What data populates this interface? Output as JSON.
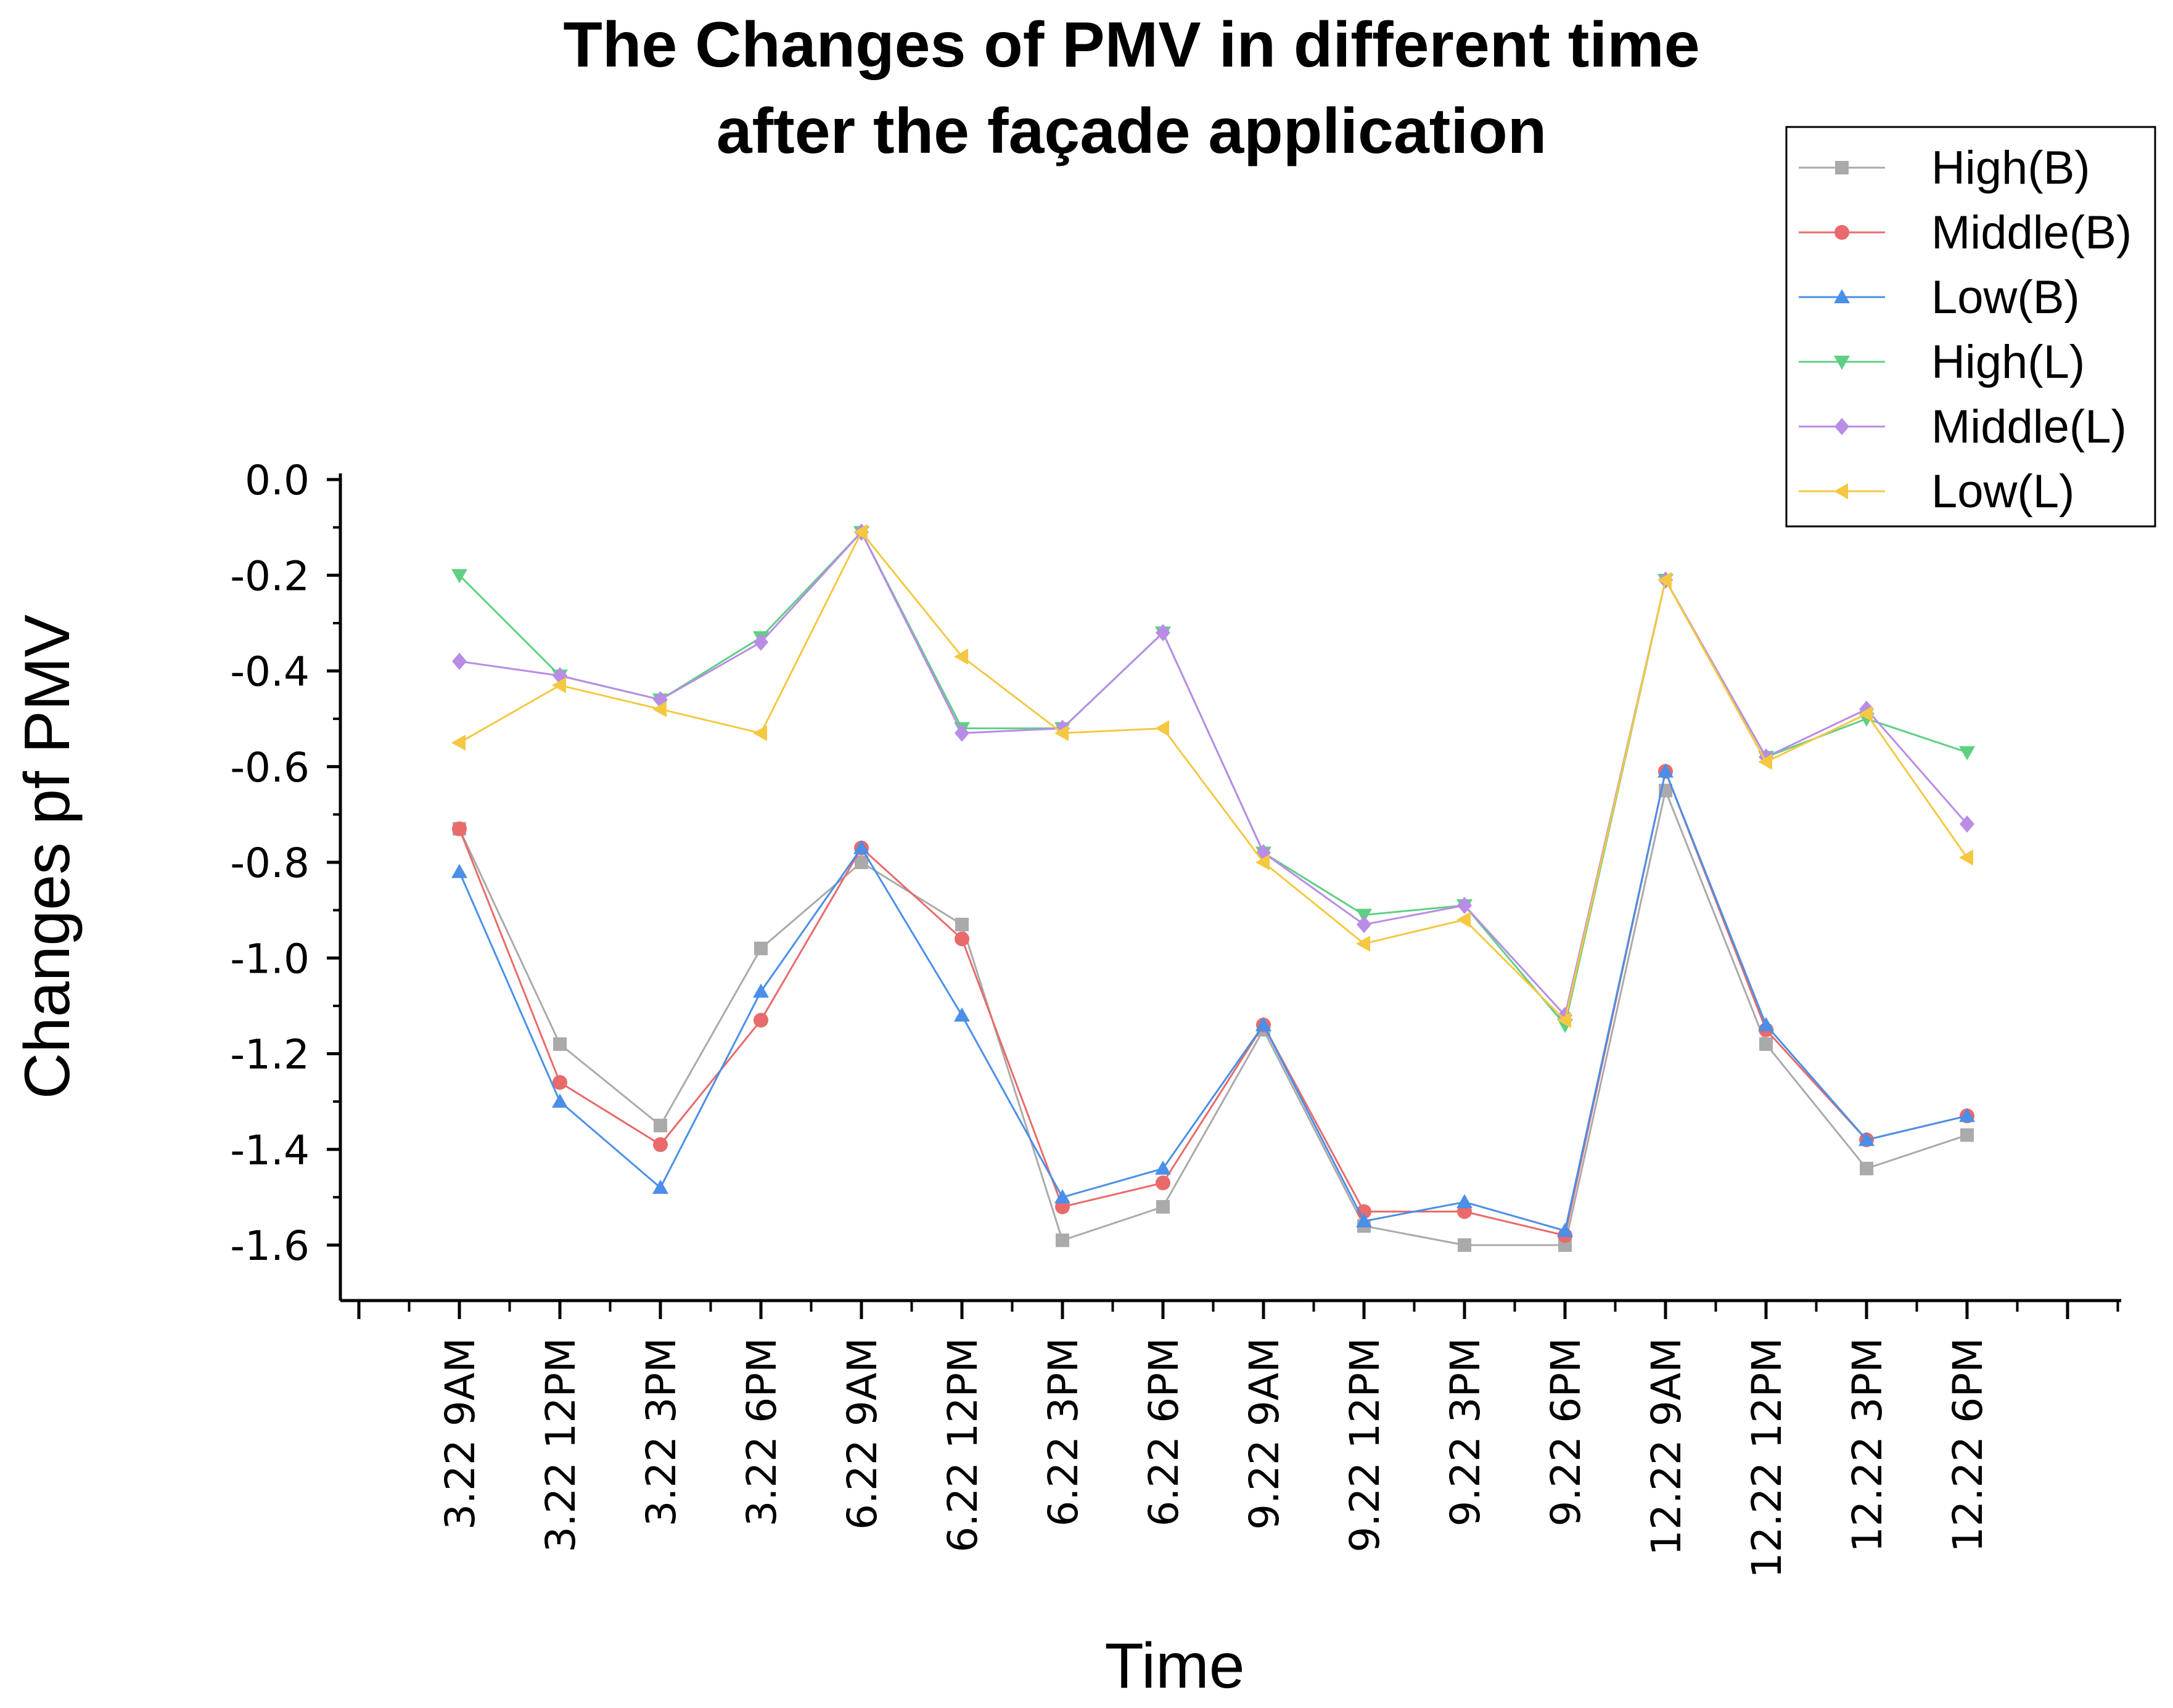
{
  "chart_data": {
    "type": "line",
    "title_lines": [
      "The Changes of PMV in different time",
      "after the façade application"
    ],
    "xlabel": "Time",
    "ylabel": "Changes pf PMV",
    "ylim": [
      -1.75,
      0.0
    ],
    "yticks": [
      0.0,
      -0.2,
      -0.4,
      -0.6,
      -0.8,
      -1.0,
      -1.2,
      -1.4,
      -1.6
    ],
    "ytick_labels": [
      "0.0",
      "-0.2",
      "-0.4",
      "-0.6",
      "-0.8",
      "-1.0",
      "-1.2",
      "-1.4",
      "-1.6"
    ],
    "categories": [
      "3.22  9AM",
      "3.22  12PM",
      "3.22  3PM",
      "3.22  6PM",
      "6.22  9AM",
      "6.22  12PM",
      "6.22  3PM",
      "6.22  6PM",
      "9.22  9AM",
      "9.22  12PM",
      "9.22  3PM",
      "9.22  6PM",
      "12.22  9AM",
      "12.22  12PM",
      "12.22  3PM",
      "12.22  6PM"
    ],
    "grid": false,
    "legend_position": "top-right",
    "series": [
      {
        "name": "High(B)",
        "color": "#aaaaaa",
        "marker": "square",
        "values": [
          -0.73,
          -1.18,
          -1.35,
          -0.98,
          -0.8,
          -0.93,
          -1.59,
          -1.52,
          -1.15,
          -1.56,
          -1.6,
          -1.6,
          -0.65,
          -1.18,
          -1.44,
          -1.37
        ]
      },
      {
        "name": "Middle(B)",
        "color": "#e96a6a",
        "marker": "circle",
        "values": [
          -0.73,
          -1.26,
          -1.39,
          -1.13,
          -0.77,
          -0.96,
          -1.52,
          -1.47,
          -1.14,
          -1.53,
          -1.53,
          -1.58,
          -0.61,
          -1.15,
          -1.38,
          -1.33
        ]
      },
      {
        "name": "Low(B)",
        "color": "#4a8fe8",
        "marker": "triangle-up",
        "values": [
          -0.82,
          -1.3,
          -1.48,
          -1.07,
          -0.77,
          -1.12,
          -1.5,
          -1.44,
          -1.14,
          -1.55,
          -1.51,
          -1.57,
          -0.61,
          -1.14,
          -1.38,
          -1.33
        ]
      },
      {
        "name": "High(L)",
        "color": "#5fcf84",
        "marker": "triangle-down",
        "values": [
          -0.2,
          -0.41,
          -0.46,
          -0.33,
          -0.11,
          -0.52,
          -0.52,
          -0.32,
          -0.78,
          -0.91,
          -0.89,
          -1.14,
          -0.21,
          -0.58,
          -0.5,
          -0.57
        ]
      },
      {
        "name": "Middle(L)",
        "color": "#b98ce6",
        "marker": "diamond",
        "values": [
          -0.38,
          -0.41,
          -0.46,
          -0.34,
          -0.11,
          -0.53,
          -0.52,
          -0.32,
          -0.78,
          -0.93,
          -0.89,
          -1.12,
          -0.21,
          -0.58,
          -0.48,
          -0.72
        ]
      },
      {
        "name": "Low(L)",
        "color": "#f5c842",
        "marker": "triangle-left",
        "values": [
          -0.55,
          -0.43,
          -0.48,
          -0.53,
          -0.11,
          -0.37,
          -0.53,
          -0.52,
          -0.8,
          -0.97,
          -0.92,
          -1.13,
          -0.21,
          -0.59,
          -0.49,
          -0.79
        ]
      }
    ]
  }
}
